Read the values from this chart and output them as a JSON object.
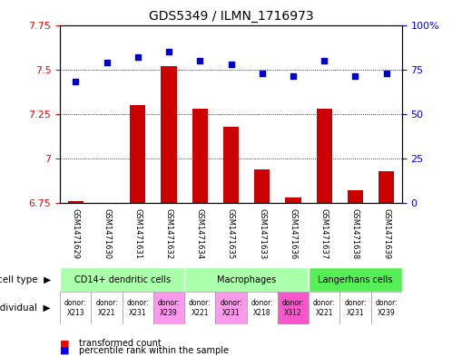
{
  "title": "GDS5349 / ILMN_1716973",
  "samples": [
    "GSM1471629",
    "GSM1471630",
    "GSM1471631",
    "GSM1471632",
    "GSM1471634",
    "GSM1471635",
    "GSM1471633",
    "GSM1471636",
    "GSM1471637",
    "GSM1471638",
    "GSM1471639"
  ],
  "transformed_count": [
    6.76,
    6.75,
    7.3,
    7.52,
    7.28,
    7.18,
    6.94,
    6.78,
    7.28,
    6.82,
    6.93
  ],
  "percentile_rank": [
    68,
    79,
    82,
    85,
    80,
    78,
    73,
    71,
    80,
    71,
    73
  ],
  "ylim": [
    6.75,
    7.75
  ],
  "y_ticks_left": [
    6.75,
    7.0,
    7.25,
    7.5,
    7.75
  ],
  "ytick_left_labels": [
    "6.75",
    "7",
    "7.25",
    "7.5",
    "7.75"
  ],
  "y_ticks_right": [
    0,
    25,
    50,
    75,
    100
  ],
  "ytick_right_labels": [
    "0",
    "25",
    "50",
    "75",
    "100%"
  ],
  "bar_color": "#CC0000",
  "dot_color": "#0000CC",
  "bg_color": "#FFFFFF",
  "sample_label_bg": "#C8C8C8",
  "cell_type_sections": [
    {
      "label": "CD14+ dendritic cells",
      "start": 0,
      "end": 3,
      "color": "#AAFFAA"
    },
    {
      "label": "Macrophages",
      "start": 4,
      "end": 7,
      "color": "#AAFFAA"
    },
    {
      "label": "Langerhans cells",
      "start": 8,
      "end": 10,
      "color": "#55EE55"
    }
  ],
  "indiv_labels": [
    "donor:\nX213",
    "donor:\nX221",
    "donor:\nX231",
    "donor:\nX239",
    "donor:\nX221",
    "donor:\nX231",
    "donor:\nX218",
    "donor:\nX312",
    "donor:\nX221",
    "donor:\nX231",
    "donor:\nX239"
  ],
  "indiv_colors": [
    "#FFFFFF",
    "#FFFFFF",
    "#FFFFFF",
    "#FF99EE",
    "#FFFFFF",
    "#FF99EE",
    "#FFFFFF",
    "#FF55CC",
    "#FFFFFF",
    "#FFFFFF",
    "#FFFFFF"
  ],
  "n_samples": 11
}
